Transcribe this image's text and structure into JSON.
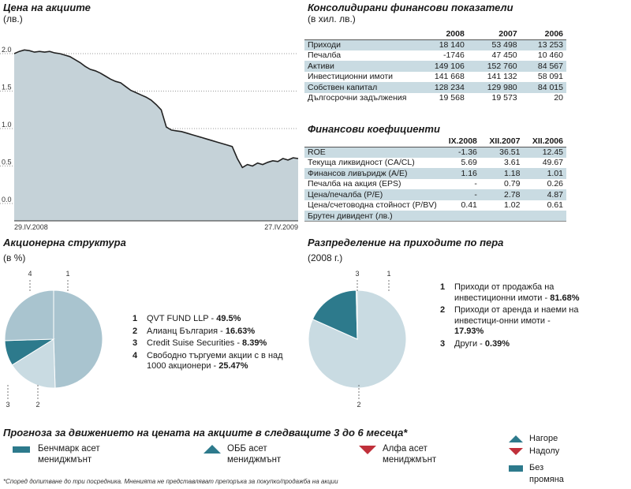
{
  "stock": {
    "title": "Цена на акциите",
    "unit": "(лв.)",
    "date_start": "29.IV.2008",
    "date_end": "27.IV.2009"
  },
  "financials": {
    "title": "Консолидирани финансови показатели",
    "unit": "(в хил. лв.)",
    "columns": [
      "2008",
      "2007",
      "2006"
    ],
    "rows": [
      {
        "label": "Приходи",
        "values": [
          "18 140",
          "53 498",
          "13 253"
        ]
      },
      {
        "label": "Печалба",
        "values": [
          "-1746",
          "47 450",
          "10 460"
        ]
      },
      {
        "label": "Активи",
        "values": [
          "149 106",
          "152 760",
          "84 567"
        ]
      },
      {
        "label": "Инвестиционни имоти",
        "values": [
          "141 668",
          "141 132",
          "58 091"
        ]
      },
      {
        "label": "Собствен капитал",
        "values": [
          "128 234",
          "129 980",
          "84 015"
        ]
      },
      {
        "label": "Дългосрочни задължения",
        "values": [
          "19 568",
          "19 573",
          "20"
        ]
      }
    ]
  },
  "ratios": {
    "title": "Финансови коефициенти",
    "columns": [
      "IX.2008",
      "XII.2007",
      "XII.2006"
    ],
    "rows": [
      {
        "label": "ROE",
        "values": [
          "-1.36",
          "36.51",
          "12.45"
        ]
      },
      {
        "label": "Текуща ликвидност (CA/CL)",
        "values": [
          "5.69",
          "3.61",
          "49.67"
        ]
      },
      {
        "label": "Финансов ливъридж (A/E)",
        "values": [
          "1.16",
          "1.18",
          "1.01"
        ]
      },
      {
        "label": "Печалба на акция (EPS)",
        "values": [
          "-",
          "0.79",
          "0.26"
        ]
      },
      {
        "label": "Цена/печалба (P/E)",
        "values": [
          "-",
          "2.78",
          "4.87"
        ]
      },
      {
        "label": "Цена/счетоводна стойност (P/BV)",
        "values": [
          "0.41",
          "1.02",
          "0.61"
        ]
      },
      {
        "label": "Брутен дивидент (лв.)",
        "values": [
          "",
          "",
          ""
        ]
      }
    ]
  },
  "shareholders": {
    "title": "Акционерна структура",
    "unit": "(в %)",
    "items": [
      {
        "num": "1",
        "text": "QVT FUND LLP - ",
        "value": "49.5%"
      },
      {
        "num": "2",
        "text": "Алианц България - ",
        "value": "16.63%"
      },
      {
        "num": "3",
        "text": "Credit Suise Securities - ",
        "value": "8.39%"
      },
      {
        "num": "4",
        "text": "Свободно търгуеми акции с в над 1000 акционери - ",
        "value": "25.47%"
      }
    ]
  },
  "revenue_split": {
    "title": "Разпределение на приходите по пера",
    "unit": "(2008 г.)",
    "items": [
      {
        "num": "1",
        "text": "Приходи от продажба на инвестиционни имоти - ",
        "value": "81.68%"
      },
      {
        "num": "2",
        "text": "Приходи от аренда и наеми на инвестици-онни имоти - ",
        "value": "17.93%"
      },
      {
        "num": "3",
        "text": "Други - ",
        "value": "0.39%"
      }
    ]
  },
  "forecast": {
    "title": "Прогноза за движението на цената на акциите в следващите 3 до 6 месеца*",
    "items": [
      {
        "label": "Бенчмарк асет мениджмънт",
        "signal": "no-change"
      },
      {
        "label": "ОББ асет мениджмънт",
        "signal": "up"
      },
      {
        "label": "Алфа асет мениджмънт",
        "signal": "down"
      }
    ],
    "key": {
      "up": "Нагоре",
      "down": "Надолу",
      "flat": "Без промяна"
    },
    "footnote": "*Според допитване до три посредника. Мненията не представляват препоръка за покупко/продажба на акции"
  },
  "colors": {
    "teal": "#2d7a8c",
    "light_blue": "#a9c4cf",
    "pale_blue": "#c9dbe2",
    "red": "#c0303a",
    "area": "#c5d2d8"
  },
  "chart_data": [
    {
      "type": "area",
      "title": "Цена на акциите",
      "ylabel": "(лв.)",
      "ylim": [
        0,
        2.0
      ],
      "yticks": [
        "0.0",
        "0.5",
        "1.0",
        "1.5",
        "2.0"
      ],
      "x_start": "29.IV.2008",
      "x_end": "27.IV.2009",
      "values": [
        2.0,
        2.03,
        2.05,
        2.04,
        2.02,
        2.03,
        2.02,
        2.03,
        2.01,
        2.0,
        1.98,
        1.96,
        1.92,
        1.88,
        1.83,
        1.79,
        1.77,
        1.74,
        1.7,
        1.66,
        1.63,
        1.61,
        1.56,
        1.51,
        1.48,
        1.45,
        1.42,
        1.38,
        1.32,
        1.25,
        1.02,
        0.98,
        0.97,
        0.96,
        0.94,
        0.92,
        0.9,
        0.88,
        0.86,
        0.84,
        0.82,
        0.8,
        0.78,
        0.76,
        0.6,
        0.48,
        0.52,
        0.5,
        0.54,
        0.52,
        0.55,
        0.57,
        0.56,
        0.6,
        0.58,
        0.61,
        0.6
      ]
    },
    {
      "type": "pie",
      "title": "Акционерна структура",
      "categories": [
        "1",
        "2",
        "3",
        "4"
      ],
      "values": [
        49.5,
        16.63,
        8.39,
        25.47
      ]
    },
    {
      "type": "pie",
      "title": "Разпределение на приходите по пера",
      "categories": [
        "1",
        "2",
        "3"
      ],
      "values": [
        81.68,
        17.93,
        0.39
      ]
    }
  ]
}
